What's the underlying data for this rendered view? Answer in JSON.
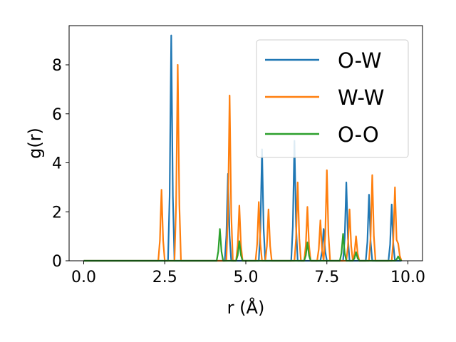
{
  "chart_data": {
    "type": "line",
    "xlabel": "r (Å)",
    "ylabel": "g(r)",
    "xlim": [
      -0.45,
      10.45
    ],
    "ylim": [
      0,
      9.6
    ],
    "xticks": [
      0.0,
      2.5,
      5.0,
      7.5,
      10.0
    ],
    "xtick_labels": [
      "0.0",
      "2.5",
      "5.0",
      "7.5",
      "10.0"
    ],
    "yticks": [
      0,
      2,
      4,
      6,
      8
    ],
    "ytick_labels": [
      "0",
      "2",
      "4",
      "6",
      "8"
    ],
    "grid": false,
    "legend": "top-right",
    "x_range": [
      0,
      9.8
    ],
    "series": [
      {
        "name": "O-W",
        "color": "#1f77b4",
        "peaks": [
          [
            2.7,
            9.2
          ],
          [
            4.45,
            3.55
          ],
          [
            5.5,
            4.55
          ],
          [
            6.5,
            4.9
          ],
          [
            7.4,
            1.3
          ],
          [
            8.1,
            3.2
          ],
          [
            8.8,
            2.7
          ],
          [
            9.5,
            2.3
          ]
        ]
      },
      {
        "name": "W-W",
        "color": "#ff7f0e",
        "peaks": [
          [
            2.4,
            2.9
          ],
          [
            2.9,
            8.0
          ],
          [
            4.5,
            6.75
          ],
          [
            4.8,
            2.25
          ],
          [
            5.4,
            2.4
          ],
          [
            5.7,
            2.1
          ],
          [
            6.6,
            3.2
          ],
          [
            6.9,
            2.2
          ],
          [
            7.3,
            1.65
          ],
          [
            7.5,
            3.7
          ],
          [
            8.2,
            2.1
          ],
          [
            8.4,
            1.0
          ],
          [
            8.9,
            3.5
          ],
          [
            9.6,
            3.0
          ],
          [
            9.7,
            0.7
          ]
        ]
      },
      {
        "name": "O-O",
        "color": "#2ca02c",
        "peaks": [
          [
            4.2,
            1.3
          ],
          [
            4.8,
            0.8
          ],
          [
            6.9,
            0.75
          ],
          [
            8.0,
            1.1
          ],
          [
            8.4,
            0.35
          ],
          [
            9.7,
            0.18
          ]
        ]
      }
    ]
  }
}
